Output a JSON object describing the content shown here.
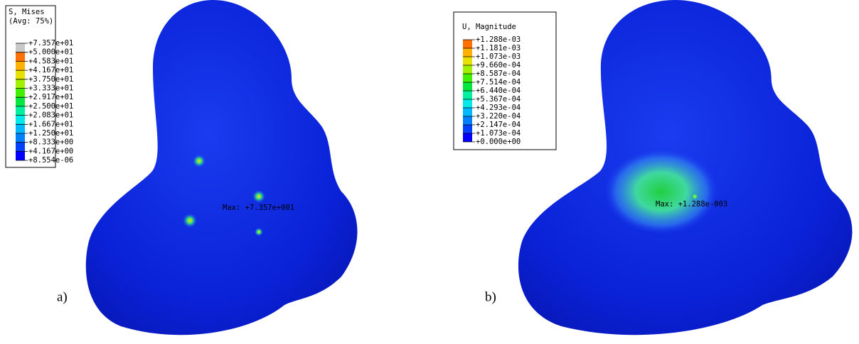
{
  "panels": [
    {
      "label": "a)",
      "legend": {
        "title": [
          "S, Mises",
          "(Avg: 75%)"
        ],
        "labels": [
          "+7.357e+01",
          "+5.000e+01",
          "+4.583e+01",
          "+4.167e+01",
          "+3.750e+01",
          "+3.333e+01",
          "+2.917e+01",
          "+2.500e+01",
          "+2.083e+01",
          "+1.667e+01",
          "+1.250e+01",
          "+8.333e+00",
          "+4.167e+00",
          "+8.554e-06"
        ]
      },
      "max_annotation": "Max: +7.357e+001"
    },
    {
      "label": "b)",
      "legend": {
        "title": [
          "U, Magnitude"
        ],
        "labels": [
          "+1.288e-03",
          "+1.181e-03",
          "+1.073e-03",
          "+9.660e-04",
          "+8.587e-04",
          "+7.514e-04",
          "+6.440e-04",
          "+5.367e-04",
          "+4.293e-04",
          "+3.220e-04",
          "+2.147e-04",
          "+1.073e-04",
          "+0.000e+00"
        ]
      },
      "max_annotation": "Max: +1.288e-003"
    }
  ]
}
